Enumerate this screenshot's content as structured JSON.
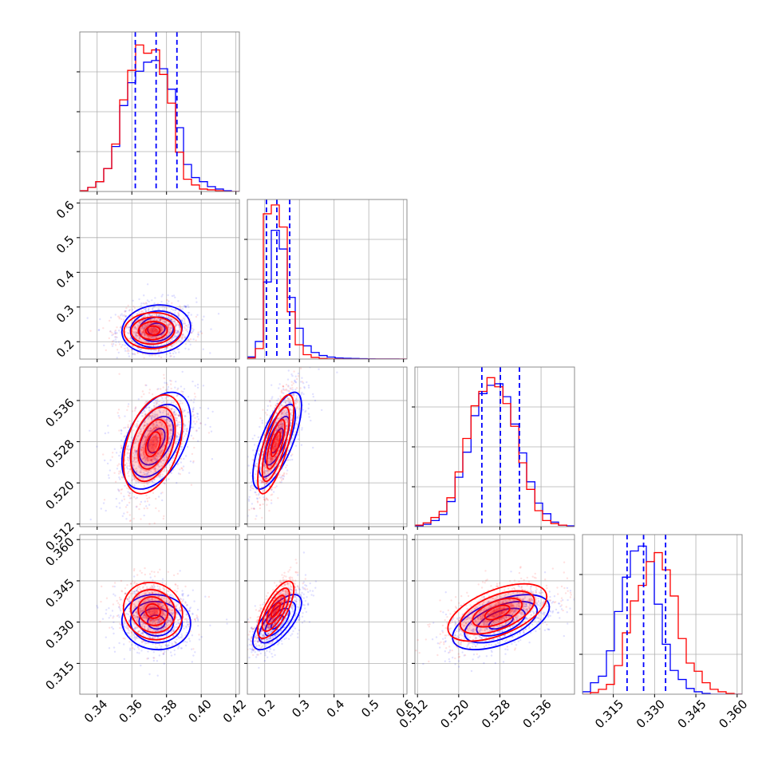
{
  "chart_data": {
    "type": "corner",
    "title": "",
    "grid": true,
    "legend": "none",
    "colors": {
      "series_a": "#0000ff",
      "series_b": "#ff0000",
      "grid": "#b0b0b0",
      "frame": "#808080"
    },
    "series": [
      {
        "color": "#0000ff",
        "quantiles": [
          [
            0.362,
            0.374,
            0.386
          ],
          [
            0.205,
            0.235,
            0.272
          ],
          [
            0.5245,
            0.5281,
            0.5318
          ],
          [
            0.32,
            0.326,
            0.334
          ]
        ]
      },
      {
        "color": "#ff0000"
      }
    ],
    "params": [
      {
        "range": [
          0.33,
          0.422
        ],
        "ticks": [
          0.34,
          0.36,
          0.38,
          0.4,
          0.42
        ],
        "tick_labels": [
          "0.34",
          "0.36",
          "0.38",
          "0.40",
          "0.42"
        ]
      },
      {
        "range": [
          0.15,
          0.61
        ],
        "ticks": [
          0.2,
          0.3,
          0.4,
          0.5,
          0.6
        ],
        "tick_labels": [
          "0.2",
          "0.3",
          "0.4",
          "0.5",
          "0.6"
        ]
      },
      {
        "range": [
          0.5115,
          0.5425
        ],
        "ticks": [
          0.512,
          0.52,
          0.528,
          0.536
        ],
        "tick_labels": [
          "0.512",
          "0.520",
          "0.528",
          "0.536"
        ]
      },
      {
        "range": [
          0.3038,
          0.3618
        ],
        "ticks": [
          0.315,
          0.33,
          0.345,
          0.36
        ],
        "tick_labels": [
          "0.315",
          "0.330",
          "0.345",
          "0.360"
        ]
      }
    ],
    "histograms": [
      {
        "edges": [
          0.33,
          0.3346,
          0.3392,
          0.3438,
          0.3484,
          0.353,
          0.3576,
          0.3622,
          0.3668,
          0.3714,
          0.376,
          0.3806,
          0.3852,
          0.3898,
          0.3944,
          0.399,
          0.4036,
          0.4082,
          0.4128,
          0.4174,
          0.422
        ],
        "ymax": 195,
        "blue": [
          1,
          5,
          12,
          28,
          55,
          105,
          133,
          147,
          158,
          160,
          150,
          125,
          78,
          33,
          17,
          12,
          6,
          3,
          1,
          0
        ],
        "red": [
          1,
          5,
          12,
          28,
          58,
          112,
          148,
          179,
          169,
          173,
          143,
          108,
          48,
          15,
          8,
          3,
          2,
          1,
          0,
          0
        ]
      },
      {
        "edges": [
          0.15,
          0.173,
          0.196,
          0.219,
          0.242,
          0.265,
          0.288,
          0.311,
          0.334,
          0.357,
          0.38,
          0.403,
          0.426,
          0.449,
          0.472,
          0.495,
          0.518,
          0.541,
          0.564,
          0.587,
          0.61
        ],
        "ymax": 1450,
        "blue": [
          20,
          160,
          700,
          1170,
          1000,
          560,
          280,
          120,
          60,
          32,
          18,
          10,
          7,
          5,
          3,
          2,
          1,
          1,
          1,
          0
        ],
        "red": [
          10,
          95,
          1320,
          1400,
          1200,
          430,
          130,
          40,
          15,
          5,
          2,
          1,
          0,
          0,
          0,
          0,
          0,
          0,
          0,
          0
        ]
      },
      {
        "edges": [
          0.5115,
          0.5131,
          0.5146,
          0.5162,
          0.5177,
          0.5193,
          0.5208,
          0.5224,
          0.5239,
          0.5255,
          0.527,
          0.5286,
          0.5301,
          0.5317,
          0.5332,
          0.5348,
          0.5363,
          0.5379,
          0.5394,
          0.541,
          0.5425
        ],
        "ymax": 210,
        "blue": [
          1,
          3,
          8,
          16,
          33,
          65,
          98,
          146,
          175,
          186,
          188,
          171,
          135,
          97,
          59,
          31,
          17,
          6,
          2,
          1
        ],
        "red": [
          2,
          5,
          12,
          20,
          38,
          72,
          116,
          159,
          178,
          196,
          184,
          162,
          132,
          84,
          49,
          21,
          8,
          4,
          2,
          0
        ]
      },
      {
        "edges": [
          0.3038,
          0.3067,
          0.3096,
          0.3125,
          0.3154,
          0.3183,
          0.3212,
          0.3241,
          0.327,
          0.3299,
          0.3328,
          0.3357,
          0.3386,
          0.3415,
          0.3444,
          0.3473,
          0.3502,
          0.3531,
          0.356,
          0.3589,
          0.3618
        ],
        "ymax": 195,
        "blue": [
          3,
          14,
          22,
          53,
          101,
          143,
          175,
          181,
          162,
          110,
          61,
          29,
          18,
          7,
          3,
          1,
          0,
          0,
          0,
          0
        ],
        "red": [
          0,
          2,
          6,
          12,
          35,
          75,
          114,
          133,
          162,
          173,
          152,
          120,
          68,
          38,
          28,
          14,
          6,
          3,
          1,
          0
        ]
      }
    ],
    "pairs": [
      {
        "row": 1,
        "col": 0,
        "blue": {
          "center": [
            0.3741,
            0.236
          ],
          "sd": [
            0.0099,
            0.035
          ],
          "corr": 0.1
        },
        "red": {
          "center": [
            0.3721,
            0.232
          ],
          "sd": [
            0.0083,
            0.026
          ],
          "corr": 0.05
        }
      },
      {
        "row": 2,
        "col": 0,
        "blue": {
          "center": [
            0.3741,
            0.5282
          ],
          "sd": [
            0.0099,
            0.0047
          ],
          "corr": 0.45
        },
        "red": {
          "center": [
            0.3722,
            0.5275
          ],
          "sd": [
            0.0085,
            0.0048
          ],
          "corr": 0.4
        }
      },
      {
        "row": 2,
        "col": 1,
        "blue": {
          "center": [
            0.236,
            0.5282
          ],
          "sd": [
            0.035,
            0.0047
          ],
          "corr": 0.72
        },
        "red": {
          "center": [
            0.232,
            0.5275
          ],
          "sd": [
            0.026,
            0.0048
          ],
          "corr": 0.72
        }
      },
      {
        "row": 3,
        "col": 0,
        "blue": {
          "center": [
            0.3741,
            0.33
          ],
          "sd": [
            0.0099,
            0.005
          ],
          "corr": -0.05
        },
        "red": {
          "center": [
            0.3722,
            0.334
          ],
          "sd": [
            0.0085,
            0.0052
          ],
          "corr": -0.1
        }
      },
      {
        "row": 3,
        "col": 1,
        "blue": {
          "center": [
            0.236,
            0.33
          ],
          "sd": [
            0.035,
            0.005
          ],
          "corr": 0.7
        },
        "red": {
          "center": [
            0.232,
            0.3345
          ],
          "sd": [
            0.026,
            0.0052
          ],
          "corr": 0.72
        }
      },
      {
        "row": 3,
        "col": 2,
        "blue": {
          "center": [
            0.5282,
            0.33
          ],
          "sd": [
            0.0047,
            0.005
          ],
          "corr": 0.55
        },
        "red": {
          "center": [
            0.5275,
            0.3335
          ],
          "sd": [
            0.0048,
            0.0052
          ],
          "corr": 0.55
        }
      }
    ],
    "contour_sigma_levels": [
      0.5,
      1.0,
      1.5,
      2.0
    ]
  }
}
